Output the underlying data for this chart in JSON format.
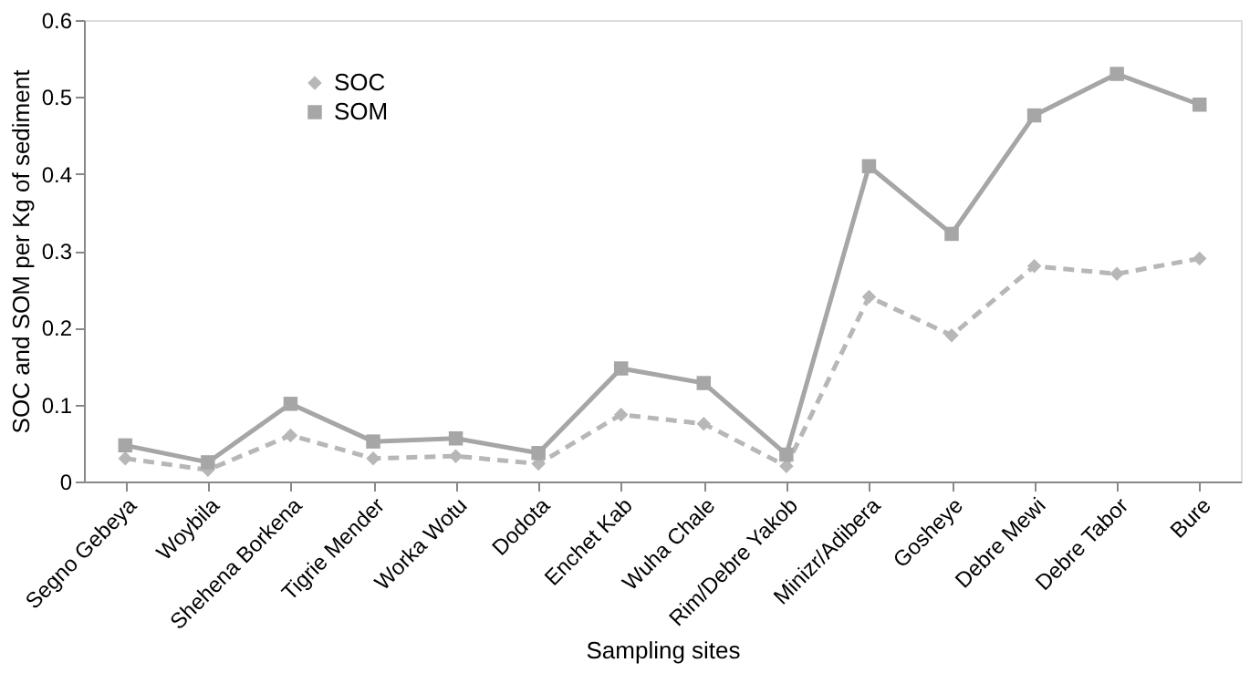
{
  "chart_data": {
    "type": "line",
    "xlabel": "Sampling sites",
    "ylabel": "SOC and SOM per Kg of sediment",
    "categories": [
      "Segno Gebeya",
      "Woybila",
      "Shehena Borkena",
      "Tigrie Mender",
      "Worka Wotu",
      "Dodota",
      "Enchet Kab",
      "Wuha Chale",
      "Rim/Debre Yakob",
      "Minizr/Adibera",
      "Gosheye",
      "Debre Mewi",
      "Debre Tabor",
      "Bure"
    ],
    "series": [
      {
        "name": "SOC",
        "color": "#b7b7b7",
        "line_style": "dashed",
        "marker": "diamond",
        "values": [
          0.03,
          0.015,
          0.06,
          0.03,
          0.033,
          0.023,
          0.087,
          0.075,
          0.02,
          0.24,
          0.19,
          0.28,
          0.27,
          0.29
        ]
      },
      {
        "name": "SOM",
        "color": "#a6a6a6",
        "line_style": "solid",
        "marker": "square",
        "values": [
          0.047,
          0.025,
          0.101,
          0.052,
          0.056,
          0.037,
          0.147,
          0.128,
          0.035,
          0.41,
          0.322,
          0.476,
          0.53,
          0.49
        ]
      }
    ],
    "ylim": [
      0,
      0.6
    ],
    "yticks": [
      0,
      0.1,
      0.2,
      0.3,
      0.4,
      0.5,
      0.6
    ],
    "grid": false,
    "legend": "top left"
  }
}
